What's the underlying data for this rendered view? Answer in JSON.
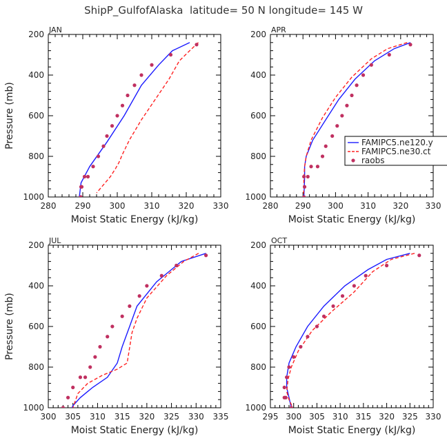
{
  "title": "ShipP_GulfofAlaska  latitude= 50 N longitude= 145 W",
  "colors": {
    "ne120": "#1a1aff",
    "ne30": "#ff2020",
    "raobs": "#c03060"
  },
  "legend": {
    "items": [
      {
        "label": "FAMIPC5.ne120.y",
        "style": "solid-blue-line"
      },
      {
        "label": "FAMIPC5.ne30.ct",
        "style": "dashed-red-line"
      },
      {
        "label": "raobs",
        "style": "magenta-dot"
      }
    ],
    "location": "APR panel, right edge"
  },
  "chart_data": [
    {
      "type": "line",
      "panel": "JAN",
      "xlabel": "Moist Static Energy (kJ/kg)",
      "ylabel": "Pressure (mb)",
      "xlim": [
        280,
        330
      ],
      "ylim": [
        1000,
        200
      ],
      "xticks": [
        280,
        290,
        300,
        310,
        320,
        330
      ],
      "yticks": [
        200,
        400,
        600,
        800,
        1000
      ],
      "series": [
        {
          "name": "FAMIPC5.ne120.y",
          "x": [
            321,
            316,
            312,
            307,
            302,
            297,
            292,
            289.5,
            289.0
          ],
          "y": [
            240,
            280,
            350,
            450,
            600,
            730,
            850,
            930,
            1000
          ]
        },
        {
          "name": "FAMIPC5.ne30.ct",
          "x": [
            323.5,
            321,
            318,
            315,
            311,
            307,
            303.5,
            301.5,
            300.5,
            299.5,
            298,
            296,
            294
          ],
          "y": [
            240,
            280,
            330,
            420,
            520,
            620,
            720,
            790,
            830,
            860,
            900,
            940,
            980
          ]
        },
        {
          "name": "raobs",
          "x": [
            323.0,
            315.5,
            310.0,
            307.0,
            305.0,
            303.0,
            301.5,
            300.0,
            298.5,
            297.0,
            296.0,
            294.5,
            293.0,
            291.5,
            290.5,
            289.7,
            289.4,
            289.5
          ],
          "y": [
            250,
            300,
            350,
            400,
            450,
            500,
            550,
            600,
            650,
            700,
            750,
            800,
            850,
            900,
            900,
            950,
            1000,
            950
          ]
        }
      ]
    },
    {
      "type": "line",
      "panel": "APR",
      "xlabel": "Moist Static Energy (kJ/kg)",
      "ylabel": "",
      "xlim": [
        280,
        330
      ],
      "ylim": [
        1000,
        200
      ],
      "xticks": [
        280,
        290,
        300,
        310,
        320,
        330
      ],
      "yticks": [
        200,
        400,
        600,
        800,
        1000
      ],
      "series": [
        {
          "name": "FAMIPC5.ne120.y",
          "x": [
            323,
            318,
            312,
            306,
            301,
            297,
            293,
            291,
            290.5,
            290.5,
            290.3
          ],
          "y": [
            240,
            270,
            330,
            420,
            520,
            620,
            720,
            800,
            850,
            900,
            1000
          ]
        },
        {
          "name": "FAMIPC5.ne30.ct",
          "x": [
            322,
            316,
            311,
            305,
            300,
            296,
            292.5,
            291,
            290.5,
            290.3,
            290.2
          ],
          "y": [
            240,
            270,
            320,
            410,
            510,
            610,
            720,
            800,
            850,
            900,
            1000
          ]
        },
        {
          "name": "raobs",
          "x": [
            323.0,
            316.5,
            311.0,
            308.5,
            306.5,
            305.0,
            303.5,
            302.0,
            300.5,
            299.0,
            297.0,
            296.0,
            294.5,
            292.5,
            291.5,
            290.5,
            290.3,
            290.3
          ],
          "y": [
            250,
            300,
            350,
            400,
            450,
            500,
            550,
            600,
            650,
            700,
            750,
            800,
            850,
            850,
            900,
            950,
            1000,
            900
          ]
        }
      ]
    },
    {
      "type": "line",
      "panel": "JUL",
      "xlabel": "Moist Static Energy (kJ/kg)",
      "ylabel": "Pressure (mb)",
      "xlim": [
        300,
        335
      ],
      "ylim": [
        1000,
        200
      ],
      "xticks": [
        300,
        305,
        310,
        315,
        320,
        325,
        330,
        335
      ],
      "yticks": [
        200,
        400,
        600,
        800,
        1000
      ],
      "series": [
        {
          "name": "FAMIPC5.ne120.y",
          "x": [
            332,
            327,
            322,
            318,
            316.5,
            315,
            314,
            312,
            309,
            306.5,
            305,
            304.5
          ],
          "y": [
            240,
            280,
            380,
            500,
            600,
            700,
            780,
            850,
            900,
            950,
            990,
            1020
          ]
        },
        {
          "name": "FAMIPC5.ne30.ct",
          "x": [
            330.5,
            327.5,
            324,
            320,
            318,
            317,
            316,
            314,
            311,
            308,
            306,
            305
          ],
          "y": [
            240,
            280,
            350,
            460,
            560,
            630,
            780,
            810,
            840,
            880,
            930,
            1000
          ]
        },
        {
          "name": "raobs",
          "x": [
            332.0,
            326.0,
            323.0,
            320.0,
            318.5,
            316.5,
            315.0,
            313.0,
            312.0,
            310.5,
            309.5,
            308.5,
            307.5,
            306.5,
            305.0,
            304.0,
            303.0
          ],
          "y": [
            250,
            300,
            350,
            400,
            450,
            500,
            550,
            600,
            650,
            700,
            750,
            800,
            850,
            850,
            900,
            950,
            1000
          ]
        }
      ]
    },
    {
      "type": "line",
      "panel": "OCT",
      "xlabel": "Moist Static Energy (kJ/kg)",
      "ylabel": "",
      "xlim": [
        295,
        330
      ],
      "ylim": [
        1000,
        200
      ],
      "xticks": [
        295,
        300,
        305,
        310,
        315,
        320,
        325,
        330
      ],
      "yticks": [
        200,
        400,
        600,
        800,
        1000
      ],
      "series": [
        {
          "name": "FAMIPC5.ne120.y",
          "x": [
            325,
            320,
            316,
            311,
            306.5,
            303,
            300.5,
            299,
            298.5,
            298.5,
            299,
            299.5
          ],
          "y": [
            240,
            270,
            320,
            400,
            500,
            600,
            700,
            780,
            850,
            900,
            950,
            1000
          ]
        },
        {
          "name": "FAMIPC5.ne30.ct",
          "x": [
            326,
            321,
            317,
            313,
            308,
            304,
            301,
            299.5,
            298.8,
            298.5,
            299,
            299.8
          ],
          "y": [
            240,
            270,
            330,
            430,
            530,
            620,
            720,
            800,
            860,
            920,
            960,
            1000
          ]
        },
        {
          "name": "raobs",
          "x": [
            327.0,
            320.0,
            315.5,
            313.0,
            310.5,
            308.5,
            306.5,
            305.0,
            303.0,
            301.5,
            300.0,
            299.0,
            298.5,
            298.0,
            298.0,
            298.3,
            299.5
          ],
          "y": [
            250,
            300,
            350,
            400,
            450,
            500,
            550,
            600,
            650,
            700,
            750,
            800,
            850,
            900,
            950,
            950,
            1000
          ]
        }
      ]
    }
  ]
}
